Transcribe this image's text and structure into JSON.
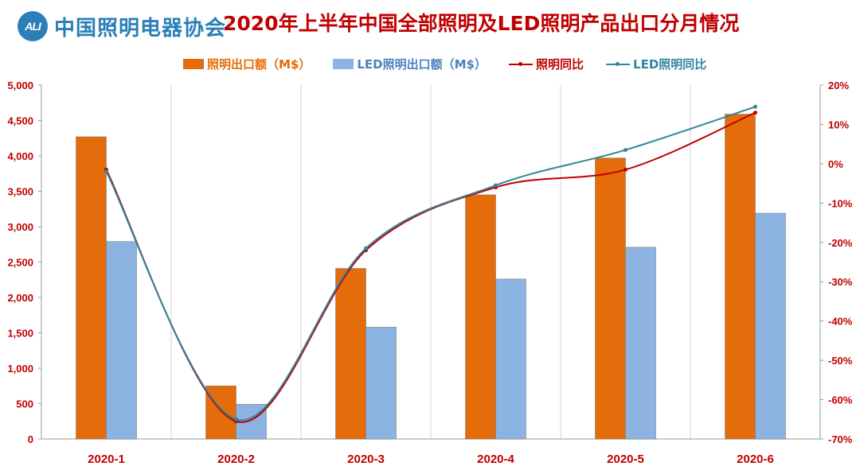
{
  "logo": {
    "mark": "ALI",
    "name": "中国照明电器协会"
  },
  "chart_data": {
    "type": "bar",
    "title": "2020年上半年中国全部照明及LED照明产品出口分月情况",
    "categories": [
      "2020-1",
      "2020-2",
      "2020-3",
      "2020-4",
      "2020-5",
      "2020-6"
    ],
    "series": [
      {
        "name": "照明出口额（M$）",
        "type": "bar",
        "axis": "left",
        "color": "#e46c0a",
        "values": [
          4270,
          750,
          2410,
          3450,
          3970,
          4590
        ]
      },
      {
        "name": "LED照明出口额（M$）",
        "type": "bar",
        "axis": "left",
        "color": "#8db3e2",
        "values": [
          2790,
          490,
          1580,
          2260,
          2710,
          3190
        ]
      },
      {
        "name": "照明同比",
        "type": "line",
        "axis": "right",
        "color": "#c00000",
        "values": [
          -1.5,
          -65.5,
          -22,
          -6,
          -1.5,
          13
        ]
      },
      {
        "name": "LED照明同比",
        "type": "line",
        "axis": "right",
        "color": "#31859c",
        "values": [
          -2,
          -65,
          -21.5,
          -5.5,
          3.5,
          14.5
        ]
      }
    ],
    "y_left": {
      "min": 0,
      "max": 5000,
      "step": 500,
      "tick_labels": [
        "0",
        "500",
        "1,000",
        "1,500",
        "2,000",
        "2,500",
        "3,000",
        "3,500",
        "4,000",
        "4,500",
        "5,000"
      ]
    },
    "y_right": {
      "min": -70,
      "max": 20,
      "step": 10,
      "tick_labels": [
        "-70%",
        "-60%",
        "-50%",
        "-40%",
        "-30%",
        "-20%",
        "-10%",
        "0%",
        "10%",
        "20%"
      ]
    },
    "grid": "vertical",
    "legend_position": "top"
  }
}
